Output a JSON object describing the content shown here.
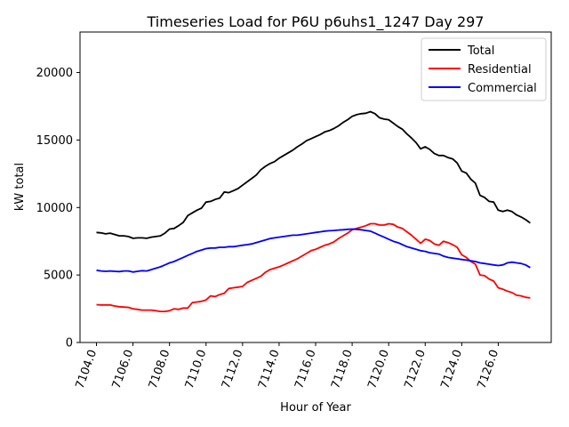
{
  "chart_data": {
    "type": "line",
    "title": "Timeseries Load for P6U p6uhs1_1247  Day 297",
    "xlabel": "Hour of Year",
    "ylabel": "kW total",
    "xlim": [
      7103.1,
      7128.9
    ],
    "ylim": [
      0,
      23000
    ],
    "x_ticks": [
      7104,
      7106,
      7108,
      7110,
      7112,
      7114,
      7116,
      7118,
      7120,
      7122,
      7124,
      7126
    ],
    "x_tick_labels": [
      "7104.0",
      "7106.0",
      "7108.0",
      "7110.0",
      "7112.0",
      "7114.0",
      "7116.0",
      "7118.0",
      "7120.0",
      "7122.0",
      "7124.0",
      "7126.0"
    ],
    "y_ticks": [
      0,
      5000,
      10000,
      15000,
      20000
    ],
    "y_tick_labels": [
      "0",
      "5000",
      "10000",
      "15000",
      "20000"
    ],
    "legend_position": "top-right",
    "x_start": 7104,
    "x_step": 0.25,
    "series": [
      {
        "name": "Total",
        "color": "#000000",
        "values": [
          8150,
          8120,
          8050,
          8100,
          8000,
          7900,
          7900,
          7850,
          7720,
          7750,
          7750,
          7720,
          7800,
          7850,
          7900,
          8100,
          8400,
          8450,
          8650,
          8900,
          9400,
          9600,
          9800,
          9950,
          10400,
          10450,
          10600,
          10700,
          11150,
          11100,
          11250,
          11400,
          11650,
          11900,
          12150,
          12400,
          12800,
          13050,
          13250,
          13400,
          13650,
          13850,
          14050,
          14250,
          14500,
          14700,
          14950,
          15100,
          15250,
          15400,
          15600,
          15700,
          15850,
          16050,
          16300,
          16500,
          16750,
          16880,
          16950,
          16980,
          17100,
          16950,
          16650,
          16550,
          16500,
          16250,
          16000,
          15800,
          15450,
          15150,
          14800,
          14350,
          14500,
          14300,
          14000,
          13850,
          13850,
          13700,
          13600,
          13300,
          12700,
          12550,
          12100,
          11800,
          10900,
          10750,
          10450,
          10400,
          9800,
          9700,
          9800,
          9700,
          9450,
          9300,
          9100,
          8850
        ]
      },
      {
        "name": "Residential",
        "color": "#ff0000",
        "values": [
          2800,
          2780,
          2780,
          2780,
          2700,
          2650,
          2620,
          2600,
          2500,
          2450,
          2400,
          2400,
          2400,
          2350,
          2300,
          2300,
          2350,
          2500,
          2450,
          2550,
          2550,
          2950,
          3000,
          3050,
          3150,
          3450,
          3400,
          3550,
          3650,
          4000,
          4050,
          4100,
          4150,
          4450,
          4600,
          4750,
          4900,
          5200,
          5400,
          5500,
          5600,
          5750,
          5900,
          6050,
          6200,
          6400,
          6600,
          6800,
          6900,
          7050,
          7200,
          7300,
          7450,
          7700,
          7900,
          8100,
          8350,
          8450,
          8550,
          8650,
          8800,
          8800,
          8700,
          8700,
          8800,
          8750,
          8550,
          8450,
          8200,
          7950,
          7650,
          7350,
          7650,
          7550,
          7300,
          7200,
          7500,
          7400,
          7250,
          7050,
          6500,
          6300,
          6000,
          5800,
          5000,
          4950,
          4700,
          4550,
          4050,
          3950,
          3800,
          3700,
          3500,
          3450,
          3350,
          3300
        ]
      },
      {
        "name": "Commercial",
        "color": "#0000ff",
        "values": [
          5350,
          5300,
          5270,
          5300,
          5270,
          5250,
          5300,
          5300,
          5220,
          5270,
          5320,
          5300,
          5400,
          5500,
          5600,
          5750,
          5900,
          6000,
          6150,
          6300,
          6450,
          6600,
          6750,
          6850,
          6950,
          7000,
          7000,
          7050,
          7050,
          7100,
          7100,
          7150,
          7200,
          7250,
          7300,
          7400,
          7500,
          7600,
          7700,
          7750,
          7800,
          7850,
          7900,
          7950,
          7950,
          8000,
          8050,
          8100,
          8150,
          8200,
          8250,
          8280,
          8300,
          8330,
          8350,
          8380,
          8400,
          8380,
          8350,
          8300,
          8250,
          8100,
          7950,
          7800,
          7650,
          7500,
          7400,
          7250,
          7100,
          7000,
          6900,
          6800,
          6750,
          6650,
          6600,
          6550,
          6400,
          6300,
          6250,
          6200,
          6150,
          6100,
          6050,
          6000,
          5900,
          5850,
          5800,
          5750,
          5700,
          5750,
          5900,
          5950,
          5900,
          5850,
          5750,
          5550
        ]
      }
    ]
  }
}
